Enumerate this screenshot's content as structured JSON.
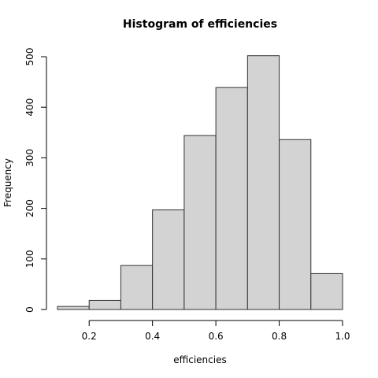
{
  "chart_data": {
    "type": "bar",
    "title": "Histogram of efficiencies",
    "xlabel": "efficiencies",
    "ylabel": "Frequency",
    "bins": [
      {
        "start": 0.1,
        "end": 0.2,
        "count": 6
      },
      {
        "start": 0.2,
        "end": 0.3,
        "count": 18
      },
      {
        "start": 0.3,
        "end": 0.4,
        "count": 87
      },
      {
        "start": 0.4,
        "end": 0.5,
        "count": 197
      },
      {
        "start": 0.5,
        "end": 0.6,
        "count": 344
      },
      {
        "start": 0.6,
        "end": 0.7,
        "count": 439
      },
      {
        "start": 0.7,
        "end": 0.8,
        "count": 502
      },
      {
        "start": 0.8,
        "end": 0.9,
        "count": 336
      },
      {
        "start": 0.9,
        "end": 1.0,
        "count": 71
      }
    ],
    "xlim": [
      0.1,
      1.0
    ],
    "ylim": [
      0,
      500
    ],
    "x_ticks": [
      "0.2",
      "0.4",
      "0.6",
      "0.8",
      "1.0"
    ],
    "y_ticks": [
      "0",
      "100",
      "200",
      "300",
      "400",
      "500"
    ],
    "bar_fill": "#d3d3d3",
    "bar_stroke": "#333333",
    "grid": false,
    "legend": "none"
  }
}
